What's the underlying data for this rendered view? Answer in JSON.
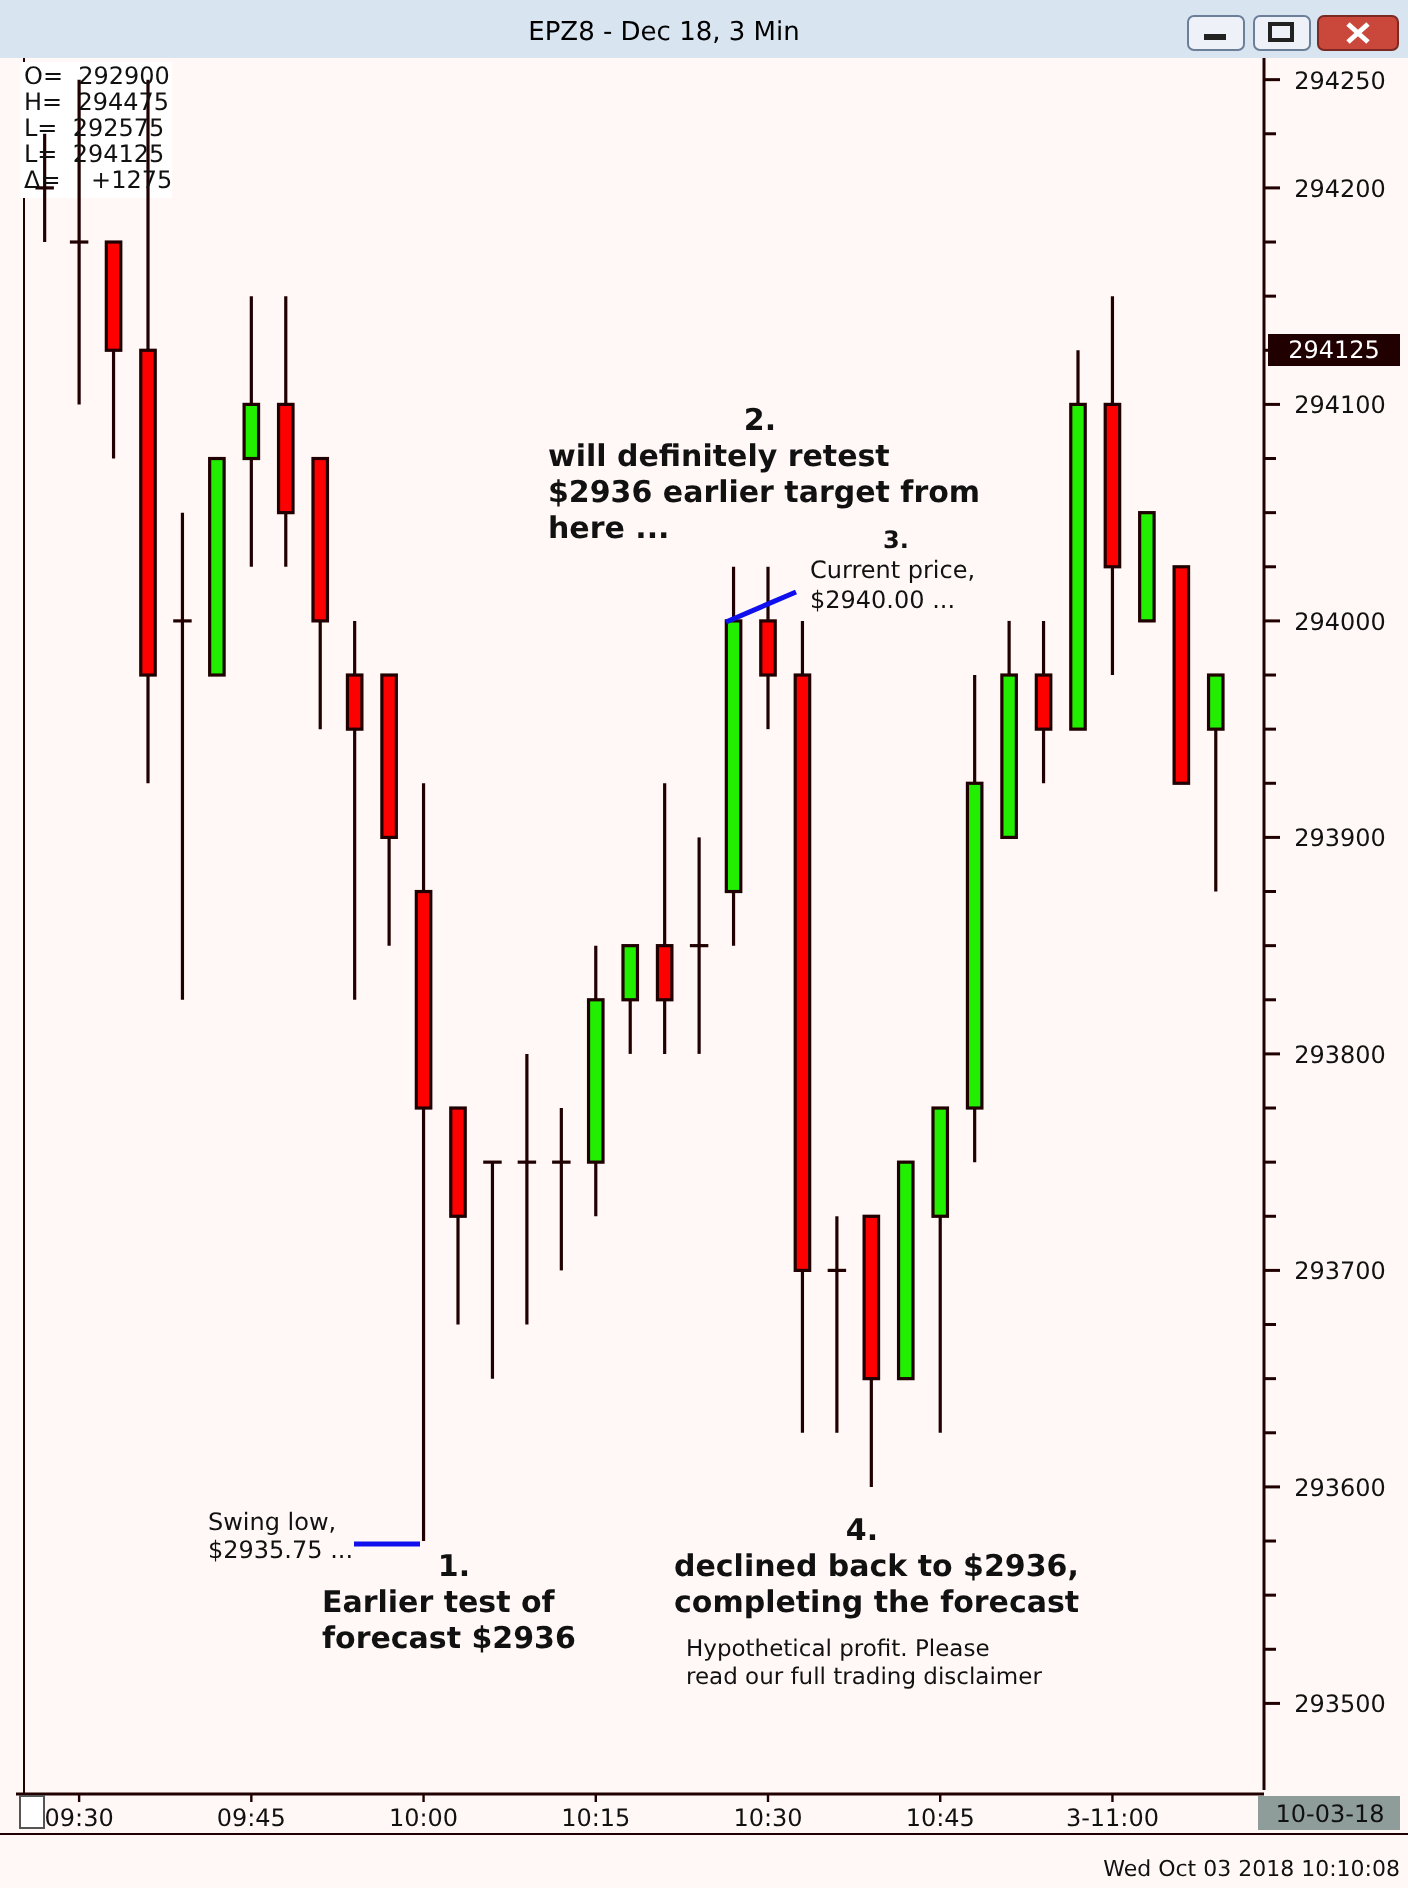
{
  "chart_data": {
    "type": "candlestick",
    "title": "EPZ8 - Dec 18, 3 Min",
    "x": [
      9.45,
      9.5,
      9.55,
      9.6,
      9.65,
      9.7,
      9.75,
      9.8,
      9.85,
      9.9,
      9.95,
      10,
      10.05,
      10.1,
      10.15,
      10.2,
      10.25,
      10.3,
      10.35,
      10.4,
      10.45,
      10.5,
      10.55,
      10.6,
      10.65,
      10.7,
      10.75,
      10.8,
      10.85,
      10.9,
      10.95,
      11,
      11.05,
      11.1,
      11.15
    ],
    "ohlc": [
      [
        294200,
        294225,
        294175,
        294200
      ],
      [
        294175,
        294250,
        294100,
        294175
      ],
      [
        294175,
        294175,
        294075,
        294125
      ],
      [
        294125,
        294250,
        293925,
        293975
      ],
      [
        294000,
        294050,
        293825,
        294000
      ],
      [
        293975,
        294075,
        293975,
        294075
      ],
      [
        294075,
        294150,
        294025,
        294100
      ],
      [
        294100,
        294150,
        294025,
        294050
      ],
      [
        294075,
        294075,
        293950,
        294000
      ],
      [
        293975,
        294000,
        293825,
        293950
      ],
      [
        293975,
        293975,
        293850,
        293900
      ],
      [
        293875,
        293925,
        293575,
        293775
      ],
      [
        293775,
        293775,
        293675,
        293725
      ],
      [
        293750,
        293750,
        293650,
        293750
      ],
      [
        293750,
        293800,
        293675,
        293750
      ],
      [
        293750,
        293775,
        293700,
        293750
      ],
      [
        293750,
        293850,
        293725,
        293825
      ],
      [
        293825,
        293850,
        293800,
        293850
      ],
      [
        293850,
        293925,
        293800,
        293825
      ],
      [
        293850,
        293900,
        293800,
        293850
      ],
      [
        293875,
        294025,
        293850,
        294000
      ],
      [
        294000,
        294025,
        293950,
        293975
      ],
      [
        293975,
        294000,
        293625,
        293700
      ],
      [
        293700,
        293725,
        293625,
        293700
      ],
      [
        293725,
        293725,
        293600,
        293650
      ],
      [
        293650,
        293750,
        293650,
        293750
      ],
      [
        293725,
        293775,
        293625,
        293775
      ],
      [
        293775,
        293975,
        293750,
        293925
      ],
      [
        293900,
        294000,
        293900,
        293975
      ],
      [
        293975,
        294000,
        293925,
        293950
      ],
      [
        293950,
        294125,
        293950,
        294100
      ],
      [
        294100,
        294150,
        293975,
        294025
      ],
      [
        294000,
        294050,
        294000,
        294050
      ],
      [
        294025,
        294025,
        293925,
        293925
      ],
      [
        293950,
        293975,
        293875,
        293975
      ]
    ],
    "colors": [
      "#200000",
      "#200000",
      "#ff0000",
      "#ff0000",
      "#200000",
      "#22ee00",
      "#22ee00",
      "#ff0000",
      "#ff0000",
      "#ff0000",
      "#ff0000",
      "#ff0000",
      "#ff0000",
      "#200000",
      "#200000",
      "#200000",
      "#22ee00",
      "#22ee00",
      "#ff0000",
      "#200000",
      "#22ee00",
      "#ff0000",
      "#ff0000",
      "#200000",
      "#ff0000",
      "#22ee00",
      "#22ee00",
      "#22ee00",
      "#22ee00",
      "#ff0000",
      "#22ee00",
      "#ff0000",
      "#22ee00",
      "#ff0000",
      "#22ee00"
    ],
    "xlim": [
      9.42,
      11.22
    ],
    "xticks": [
      {
        "value": 9.5,
        "label": "09:30"
      },
      {
        "value": 9.75,
        "label": "09:45"
      },
      {
        "value": 10,
        "label": "10:00"
      },
      {
        "value": 10.25,
        "label": "10:15"
      },
      {
        "value": 10.5,
        "label": "10:30"
      },
      {
        "value": 10.75,
        "label": "10:45"
      },
      {
        "value": 11,
        "label": "3-11:00"
      }
    ],
    "ylim": [
      293460,
      294260
    ],
    "yticks": [
      293500,
      {
        "value": 293525,
        "label": null
      },
      {
        "value": 293550,
        "label": null
      },
      {
        "value": 293575,
        "label": null
      },
      293600,
      {
        "value": 293625,
        "label": null
      },
      {
        "value": 293650,
        "label": null
      },
      {
        "value": 293675,
        "label": null
      },
      293700,
      {
        "value": 293725,
        "label": null
      },
      {
        "value": 293750,
        "label": null
      },
      {
        "value": 293775,
        "label": null
      },
      293800,
      {
        "value": 293825,
        "label": null
      },
      {
        "value": 293850,
        "label": null
      },
      {
        "value": 293875,
        "label": null
      },
      293900,
      {
        "value": 293925,
        "label": null
      },
      {
        "value": 293950,
        "label": null
      },
      {
        "value": 293975,
        "label": null
      },
      294000,
      {
        "value": 294025,
        "label": null
      },
      {
        "value": 294050,
        "label": null
      },
      {
        "value": 294075,
        "label": null
      },
      294100,
      {
        "value": 294125,
        "label": null
      },
      {
        "value": 294150,
        "label": null
      },
      {
        "value": 294175,
        "label": null
      },
      294200,
      {
        "value": 294225,
        "label": null
      },
      294250
    ],
    "annotations": [
      "O=  292900",
      "H=  294475",
      "L=  292575",
      "L=  294125",
      "Δ=    +1275",
      "Swing low,\n$2935.75 ...",
      "1.\nEarlier test of\nforecast $2936",
      "2.\nwill definitely retest\n$2936 earlier target from\nhere ...",
      "3.\nCurrent price,\n$2940.00 ...",
      "4.\ndeclined back to $2936,\ncompleting the forecast",
      "Hypothetical profit. Please\nread our full trading disclaimer",
      "10-03-18",
      "Wed Oct 03 2018 10:10:08",
      "294125"
    ]
  }
}
